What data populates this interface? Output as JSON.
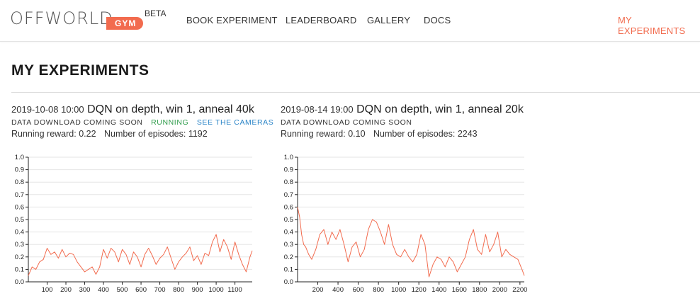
{
  "nav": {
    "logo_text": "OFFWORLD",
    "logo_badge": "GYM",
    "beta": "BETA",
    "items": [
      "BOOK EXPERIMENT",
      "LEADERBOARD",
      "GALLERY",
      "DOCS"
    ],
    "active_item": "MY EXPERIMENTS"
  },
  "colors": {
    "accent": "#f26b4e",
    "running": "#2e9c4a",
    "link": "#2d86c8",
    "line": "#f26b4e"
  },
  "page_title": "MY EXPERIMENTS",
  "experiments": [
    {
      "datetime": "2019-10-08 10:00",
      "name": "DQN on depth, win 1, anneal 40k",
      "download": "DATA DOWNLOAD COMING SOON",
      "status": "RUNNING",
      "cameras_link": "SEE THE CAMERAS",
      "reward_text": "Running reward: 0.22",
      "episodes_text": "Number of episodes: 1192"
    },
    {
      "datetime": "2019-08-14 19:00",
      "name": "DQN on depth, win 1, anneal 20k",
      "download": "DATA DOWNLOAD COMING SOON",
      "status": "",
      "cameras_link": "",
      "reward_text": "Running reward: 0.10",
      "episodes_text": "Number of episodes: 2243"
    }
  ],
  "chart_data": [
    {
      "type": "line",
      "xlim": [
        0,
        1192
      ],
      "ylim": [
        0,
        1
      ],
      "x_ticks": [
        100,
        200,
        300,
        400,
        500,
        600,
        700,
        800,
        900,
        1000,
        1100
      ],
      "y_ticks": [
        0.0,
        0.1,
        0.2,
        0.3,
        0.4,
        0.5,
        0.6,
        0.7,
        0.8,
        0.9,
        1.0
      ],
      "grid": true,
      "series": [
        {
          "x": [
            0,
            20,
            40,
            60,
            80,
            100,
            120,
            140,
            160,
            180,
            200,
            220,
            240,
            260,
            280,
            300,
            320,
            340,
            360,
            380,
            400,
            420,
            440,
            460,
            480,
            500,
            520,
            540,
            560,
            580,
            600,
            620,
            640,
            660,
            680,
            700,
            720,
            740,
            760,
            780,
            800,
            820,
            840,
            860,
            880,
            900,
            920,
            940,
            960,
            980,
            1000,
            1020,
            1040,
            1060,
            1080,
            1100,
            1120,
            1140,
            1160,
            1180,
            1192
          ],
          "values": [
            0.05,
            0.12,
            0.1,
            0.16,
            0.18,
            0.27,
            0.22,
            0.24,
            0.19,
            0.26,
            0.2,
            0.23,
            0.22,
            0.16,
            0.12,
            0.08,
            0.1,
            0.12,
            0.06,
            0.12,
            0.26,
            0.19,
            0.27,
            0.24,
            0.16,
            0.26,
            0.22,
            0.14,
            0.24,
            0.2,
            0.12,
            0.22,
            0.27,
            0.21,
            0.14,
            0.19,
            0.22,
            0.28,
            0.19,
            0.1,
            0.16,
            0.2,
            0.23,
            0.28,
            0.17,
            0.21,
            0.14,
            0.23,
            0.21,
            0.32,
            0.38,
            0.24,
            0.34,
            0.28,
            0.18,
            0.32,
            0.22,
            0.14,
            0.08,
            0.2,
            0.25
          ]
        }
      ]
    },
    {
      "type": "line",
      "xlim": [
        0,
        2243
      ],
      "ylim": [
        0,
        1
      ],
      "x_ticks": [
        200,
        400,
        600,
        800,
        1000,
        1200,
        1400,
        1600,
        1800,
        2000,
        2200
      ],
      "y_ticks": [
        0.0,
        0.1,
        0.2,
        0.3,
        0.4,
        0.5,
        0.6,
        0.7,
        0.8,
        0.9,
        1.0
      ],
      "grid": true,
      "series": [
        {
          "x": [
            0,
            20,
            40,
            60,
            80,
            110,
            140,
            180,
            220,
            260,
            300,
            340,
            380,
            420,
            460,
            500,
            540,
            580,
            620,
            660,
            700,
            740,
            780,
            820,
            860,
            900,
            940,
            980,
            1020,
            1060,
            1100,
            1140,
            1180,
            1220,
            1260,
            1300,
            1340,
            1380,
            1420,
            1460,
            1500,
            1540,
            1580,
            1620,
            1660,
            1700,
            1740,
            1780,
            1820,
            1860,
            1900,
            1940,
            1980,
            2020,
            2060,
            2100,
            2140,
            2180,
            2220,
            2243
          ],
          "values": [
            0.6,
            0.52,
            0.38,
            0.3,
            0.28,
            0.22,
            0.18,
            0.26,
            0.38,
            0.42,
            0.3,
            0.4,
            0.34,
            0.42,
            0.3,
            0.16,
            0.28,
            0.32,
            0.2,
            0.26,
            0.42,
            0.5,
            0.48,
            0.4,
            0.3,
            0.46,
            0.3,
            0.22,
            0.2,
            0.26,
            0.2,
            0.16,
            0.22,
            0.38,
            0.3,
            0.04,
            0.14,
            0.2,
            0.18,
            0.12,
            0.2,
            0.16,
            0.08,
            0.14,
            0.2,
            0.34,
            0.42,
            0.26,
            0.22,
            0.38,
            0.24,
            0.3,
            0.4,
            0.2,
            0.26,
            0.22,
            0.2,
            0.18,
            0.1,
            0.05
          ]
        }
      ]
    }
  ]
}
